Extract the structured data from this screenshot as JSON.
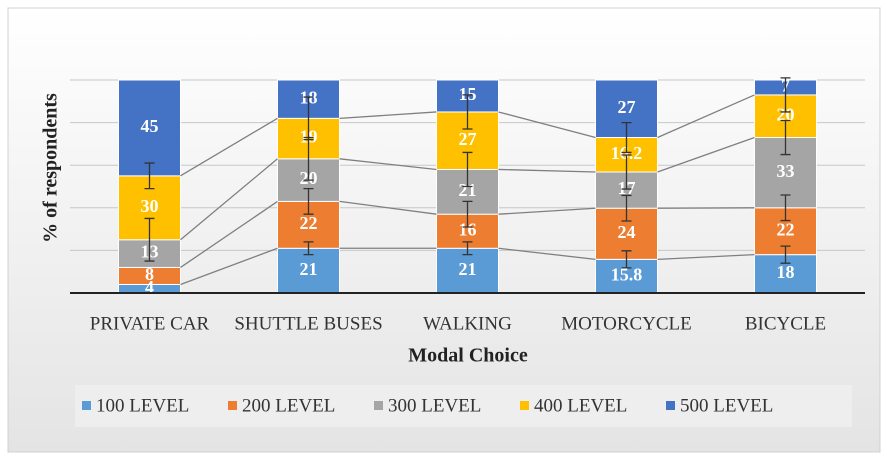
{
  "chart_data": {
    "type": "stacked_bar",
    "x_label": "Modal Choice",
    "y_label": "% of respondents",
    "categories": [
      "PRIVATE CAR",
      "SHUTTLE BUSES",
      "WALKING",
      "MOTORCYCLE",
      "BICYCLE"
    ],
    "series": [
      {
        "name": "100 LEVEL",
        "color": "#5b9bd5",
        "values": [
          4,
          21,
          21,
          15.8,
          18
        ],
        "errors": [
          null,
          3,
          3,
          4,
          4
        ]
      },
      {
        "name": "200 LEVEL",
        "color": "#ed7d31",
        "values": [
          8,
          22,
          16,
          24,
          22
        ],
        "errors": [
          null,
          6,
          6,
          6,
          6
        ]
      },
      {
        "name": "300 LEVEL",
        "color": "#a5a5a5",
        "values": [
          13,
          20,
          21,
          17,
          33
        ],
        "errors": [
          10,
          10,
          8,
          8,
          8
        ]
      },
      {
        "name": "400 LEVEL",
        "color": "#ffc000",
        "values": [
          30,
          19,
          27,
          16.2,
          20
        ],
        "errors": [
          6,
          10,
          8,
          7,
          8
        ]
      },
      {
        "name": "500 LEVEL",
        "color": "#4472c4",
        "values": [
          45,
          18,
          15,
          27,
          7
        ],
        "errors": [
          null,
          null,
          null,
          null,
          null
        ]
      }
    ],
    "ylim": [
      0,
      100
    ],
    "yticks": [
      0,
      20,
      40,
      60,
      80,
      100
    ],
    "grid": true,
    "legend": "bottom"
  }
}
